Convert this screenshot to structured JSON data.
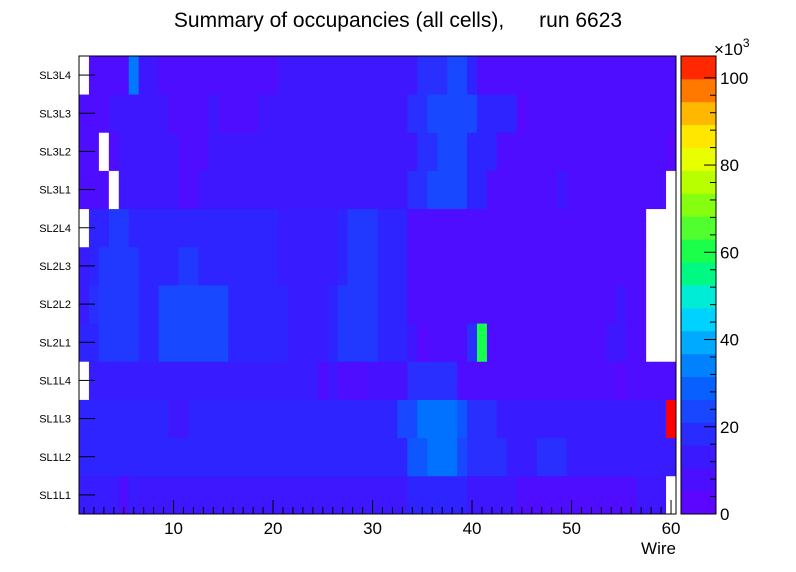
{
  "chart_data": {
    "type": "heatmap",
    "title": "Summary of occupancies (all cells),      run 6623",
    "xlabel": "Wire",
    "ylabel": "",
    "x_range": [
      0.5,
      60.5
    ],
    "x_ticks": [
      10,
      20,
      30,
      40,
      50,
      60
    ],
    "rows": [
      "SL1L1",
      "SL1L2",
      "SL1L3",
      "SL1L4",
      "SL2L1",
      "SL2L2",
      "SL2L3",
      "SL2L4",
      "SL3L1",
      "SL3L2",
      "SL3L3",
      "SL3L4"
    ],
    "z_range": [
      0,
      105
    ],
    "z_unit_label": "×10",
    "z_unit_exp": "3",
    "z_ticks": [
      0,
      20,
      40,
      60,
      80,
      100
    ],
    "note": "cell values in thousands; null = empty (white) cell; row arrays indexed by wire 1..60",
    "segments": {
      "SL1L1": [
        [
          1,
          4,
          14
        ],
        [
          5,
          5,
          7
        ],
        [
          6,
          6,
          14
        ],
        [
          7,
          33,
          12
        ],
        [
          34,
          39,
          17
        ],
        [
          40,
          44,
          12
        ],
        [
          45,
          56,
          7
        ],
        [
          57,
          59,
          12
        ],
        [
          60,
          60,
          null
        ]
      ],
      "SL1L2": [
        [
          1,
          33,
          17
        ],
        [
          34,
          35,
          27
        ],
        [
          36,
          38,
          32
        ],
        [
          39,
          39,
          24
        ],
        [
          40,
          43,
          19
        ],
        [
          44,
          46,
          14
        ],
        [
          47,
          49,
          19
        ],
        [
          50,
          60,
          14
        ]
      ],
      "SL1L3": [
        [
          1,
          9,
          17
        ],
        [
          10,
          11,
          12
        ],
        [
          12,
          32,
          17
        ],
        [
          33,
          34,
          24
        ],
        [
          35,
          38,
          32
        ],
        [
          39,
          39,
          27
        ],
        [
          40,
          42,
          19
        ],
        [
          43,
          59,
          14
        ],
        [
          60,
          60,
          105
        ]
      ],
      "SL1L4": [
        [
          1,
          1,
          null
        ],
        [
          2,
          24,
          14
        ],
        [
          25,
          25,
          7
        ],
        [
          26,
          26,
          12
        ],
        [
          27,
          29,
          7
        ],
        [
          30,
          33,
          9
        ],
        [
          34,
          38,
          19
        ],
        [
          39,
          54,
          7
        ],
        [
          55,
          55,
          4
        ],
        [
          56,
          60,
          7
        ]
      ],
      "SL2L1": [
        [
          1,
          2,
          17
        ],
        [
          3,
          6,
          21
        ],
        [
          7,
          8,
          17
        ],
        [
          9,
          15,
          24
        ],
        [
          16,
          21,
          17
        ],
        [
          22,
          25,
          14
        ],
        [
          26,
          26,
          17
        ],
        [
          27,
          30,
          21
        ],
        [
          31,
          33,
          17
        ],
        [
          34,
          34,
          12
        ],
        [
          35,
          35,
          4
        ],
        [
          36,
          39,
          7
        ],
        [
          40,
          40,
          19
        ],
        [
          41,
          41,
          60
        ],
        [
          42,
          53,
          7
        ],
        [
          54,
          55,
          12
        ],
        [
          56,
          57,
          7
        ],
        [
          58,
          60,
          null
        ]
      ],
      "SL2L2": [
        [
          1,
          1,
          14
        ],
        [
          2,
          2,
          19
        ],
        [
          3,
          6,
          21
        ],
        [
          7,
          8,
          17
        ],
        [
          9,
          15,
          24
        ],
        [
          16,
          21,
          17
        ],
        [
          22,
          25,
          14
        ],
        [
          26,
          26,
          17
        ],
        [
          27,
          30,
          21
        ],
        [
          31,
          33,
          17
        ],
        [
          34,
          54,
          7
        ],
        [
          55,
          55,
          12
        ],
        [
          56,
          57,
          7
        ],
        [
          58,
          60,
          null
        ]
      ],
      "SL2L3": [
        [
          1,
          1,
          14
        ],
        [
          2,
          2,
          17
        ],
        [
          3,
          6,
          21
        ],
        [
          7,
          10,
          17
        ],
        [
          11,
          12,
          21
        ],
        [
          13,
          20,
          17
        ],
        [
          21,
          26,
          14
        ],
        [
          27,
          27,
          17
        ],
        [
          28,
          30,
          21
        ],
        [
          31,
          33,
          17
        ],
        [
          34,
          57,
          7
        ],
        [
          58,
          60,
          null
        ]
      ],
      "SL2L4": [
        [
          1,
          1,
          null
        ],
        [
          2,
          3,
          17
        ],
        [
          4,
          5,
          21
        ],
        [
          6,
          20,
          17
        ],
        [
          21,
          26,
          14
        ],
        [
          27,
          27,
          17
        ],
        [
          28,
          30,
          21
        ],
        [
          31,
          33,
          17
        ],
        [
          34,
          57,
          7
        ],
        [
          58,
          60,
          null
        ]
      ],
      "SL3L1": [
        [
          1,
          3,
          7
        ],
        [
          4,
          4,
          null
        ],
        [
          5,
          10,
          12
        ],
        [
          11,
          12,
          7
        ],
        [
          13,
          33,
          12
        ],
        [
          34,
          35,
          19
        ],
        [
          36,
          39,
          24
        ],
        [
          40,
          41,
          17
        ],
        [
          42,
          48,
          7
        ],
        [
          49,
          49,
          12
        ],
        [
          50,
          59,
          7
        ],
        [
          60,
          60,
          null
        ]
      ],
      "SL3L2": [
        [
          1,
          2,
          7
        ],
        [
          3,
          3,
          null
        ],
        [
          4,
          4,
          7
        ],
        [
          5,
          10,
          12
        ],
        [
          11,
          13,
          7
        ],
        [
          14,
          34,
          12
        ],
        [
          35,
          36,
          19
        ],
        [
          37,
          39,
          24
        ],
        [
          40,
          42,
          17
        ],
        [
          43,
          59,
          7
        ],
        [
          60,
          60,
          4
        ]
      ],
      "SL3L3": [
        [
          1,
          3,
          7
        ],
        [
          4,
          9,
          12
        ],
        [
          10,
          13,
          7
        ],
        [
          14,
          14,
          12
        ],
        [
          15,
          18,
          7
        ],
        [
          19,
          33,
          12
        ],
        [
          34,
          35,
          19
        ],
        [
          36,
          40,
          24
        ],
        [
          41,
          44,
          17
        ],
        [
          45,
          45,
          4
        ],
        [
          46,
          59,
          7
        ],
        [
          60,
          60,
          7
        ]
      ],
      "SL3L4": [
        [
          1,
          1,
          null
        ],
        [
          2,
          5,
          7
        ],
        [
          6,
          6,
          33
        ],
        [
          7,
          8,
          12
        ],
        [
          9,
          20,
          7
        ],
        [
          21,
          34,
          12
        ],
        [
          35,
          37,
          19
        ],
        [
          38,
          39,
          24
        ],
        [
          40,
          40,
          17
        ],
        [
          41,
          60,
          7
        ]
      ]
    }
  }
}
